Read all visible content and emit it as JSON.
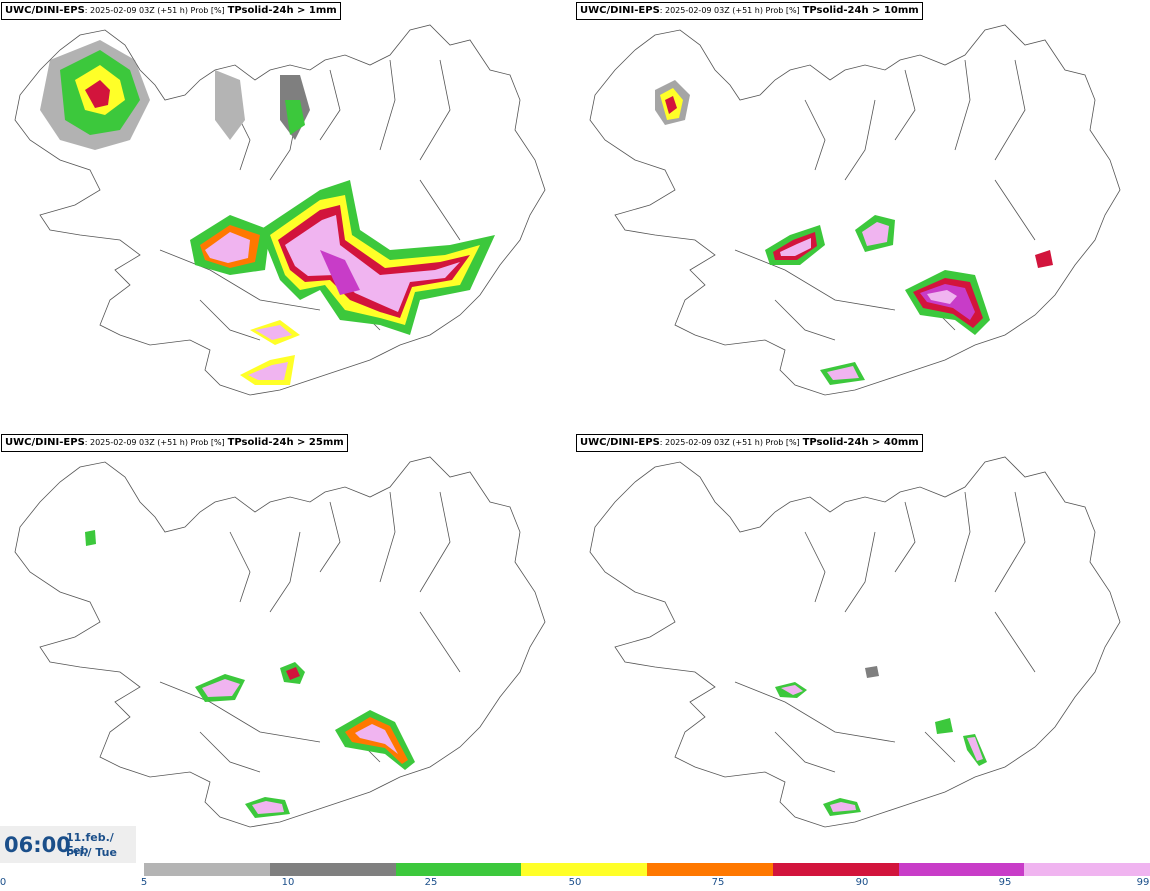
{
  "panels": [
    {
      "source": "UWC/DINI-EPS",
      "meta": ": 2025-02-09 03Z (+51 h) Prob [%]",
      "variable": "TPsolid-24h > 1mm"
    },
    {
      "source": "UWC/DINI-EPS",
      "meta": ": 2025-02-09 03Z (+51 h) Prob [%]",
      "variable": "TPsolid-24h > 10mm"
    },
    {
      "source": "UWC/DINI-EPS",
      "meta": ": 2025-02-09 03Z (+51 h) Prob [%]",
      "variable": "TPsolid-24h > 25mm"
    },
    {
      "source": "UWC/DINI-EPS",
      "meta": ": 2025-02-09 03Z (+51 h) Prob [%]",
      "variable": "TPsolid-24h > 40mm"
    }
  ],
  "valid_time": {
    "time": "06:00",
    "date_line1": "11.feb./ Feb",
    "date_line2": "Þri./ Tue"
  },
  "colorbar": {
    "ticks": [
      "0",
      "5",
      "10",
      "25",
      "50",
      "75",
      "90",
      "95",
      "99"
    ],
    "colors": [
      "#b4b4b4",
      "#7f7f7f",
      "#3cc83c",
      "#ffff28",
      "#ff7800",
      "#d2143c",
      "#c83cc8",
      "#f0b4f0"
    ]
  },
  "legend_colors": {
    "p5": "#b4b4b4",
    "p10": "#7f7f7f",
    "p25": "#3cc83c",
    "p50": "#ffff28",
    "p75": "#ff7800",
    "p90": "#d2143c",
    "p95": "#c83cc8",
    "p99": "#f0b4f0"
  }
}
